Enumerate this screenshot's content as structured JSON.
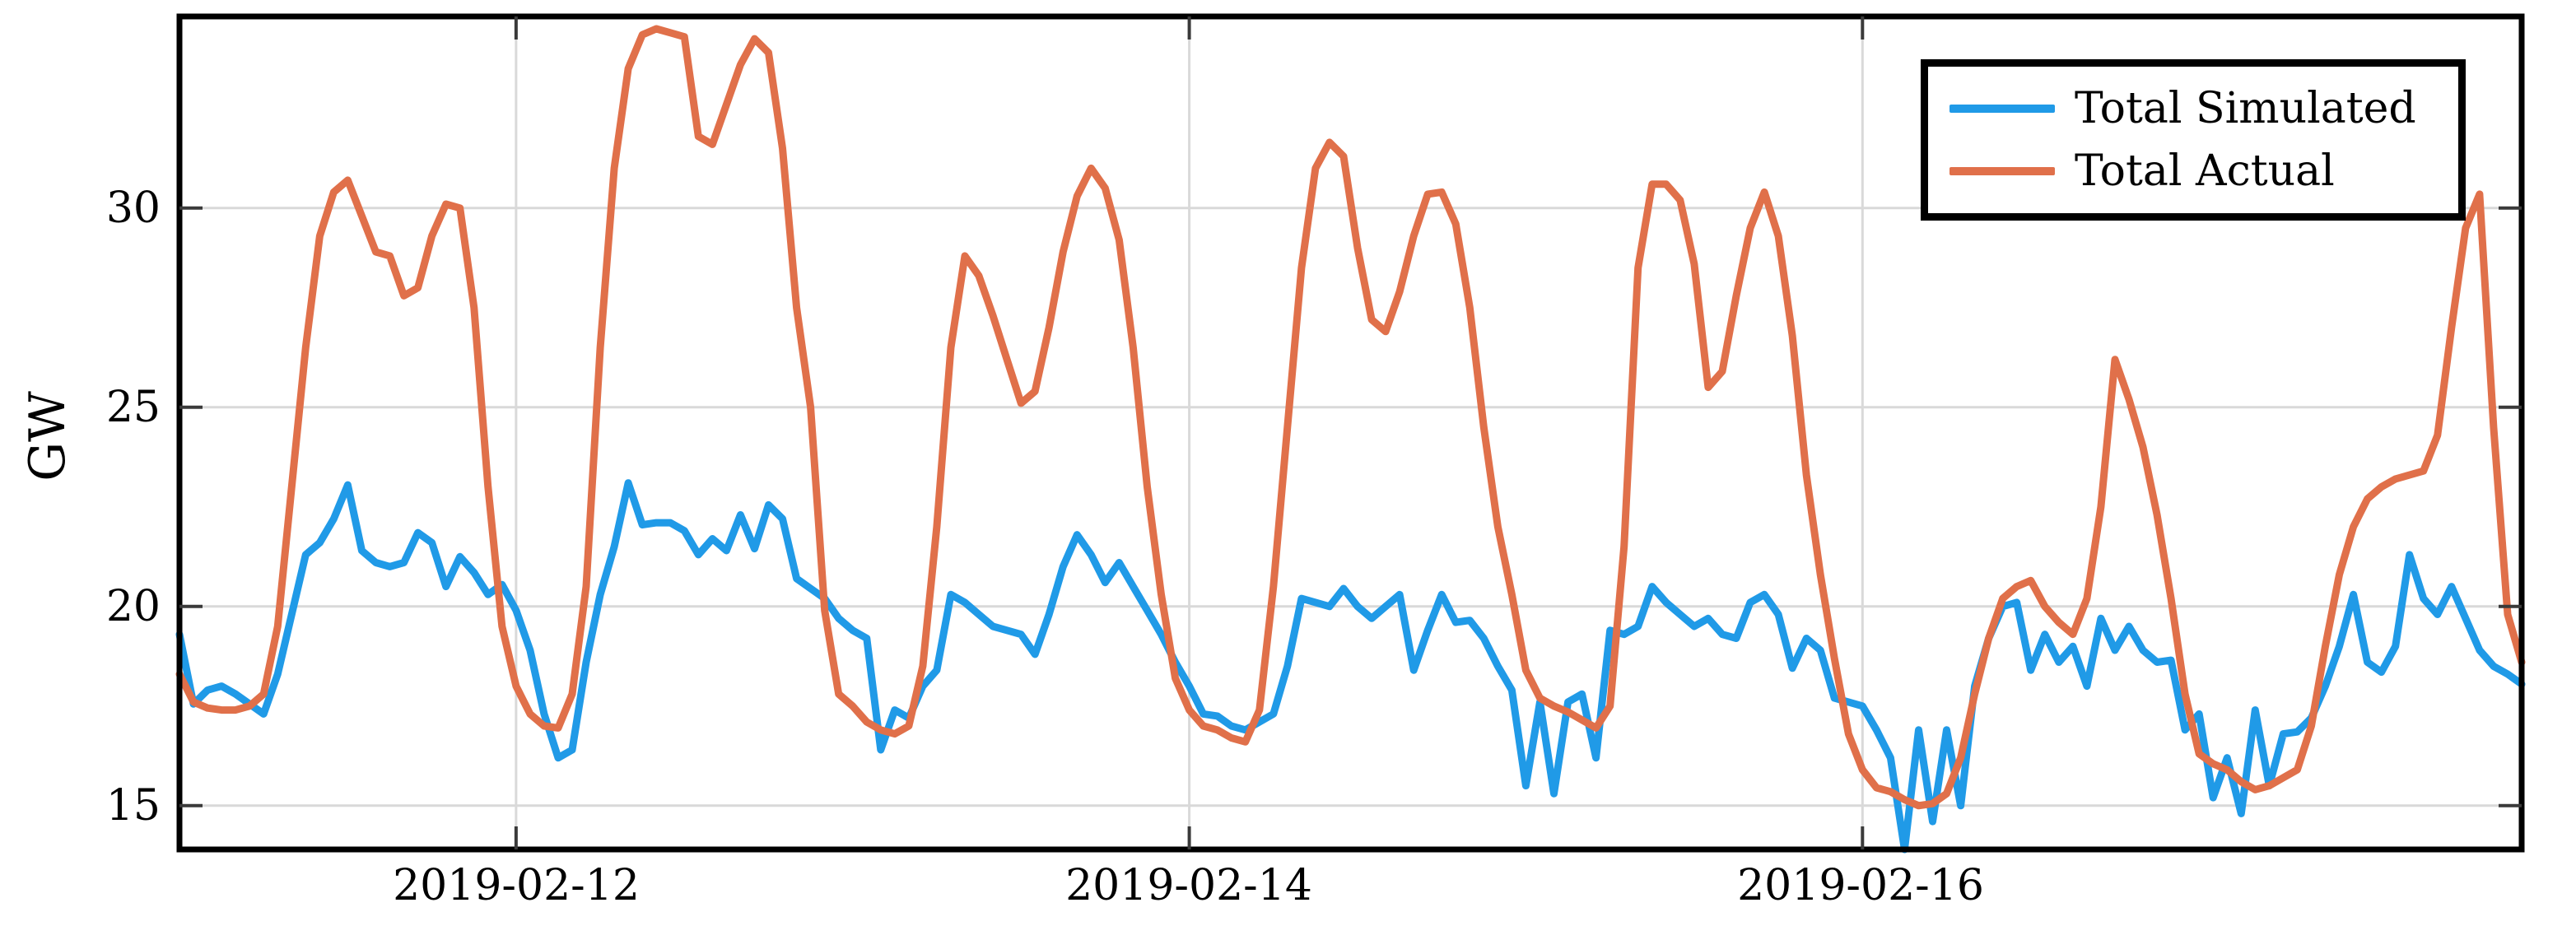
{
  "chart_data": {
    "type": "line",
    "title": "",
    "ylabel": "GW",
    "xlabel": "",
    "grid": true,
    "legend_position": "top-right",
    "ylim": [
      13.9,
      34.81
    ],
    "y_ticks": [
      30,
      25,
      20,
      15
    ],
    "x_start": "2019-02-11 00:00",
    "x_step_hours": 1,
    "x_ticks": [
      {
        "label": "2019-02-12",
        "hour_index": 24
      },
      {
        "label": "2019-02-14",
        "hour_index": 72
      },
      {
        "label": "2019-02-16",
        "hour_index": 120
      }
    ],
    "series": [
      {
        "name": "Total Simulated",
        "color": "#209AE7",
        "values": [
          19.3,
          17.55,
          17.9,
          18.0,
          17.8,
          17.55,
          17.3,
          18.3,
          19.8,
          21.3,
          21.6,
          22.2,
          23.05,
          21.4,
          21.1,
          21.0,
          21.1,
          21.85,
          21.6,
          20.5,
          21.25,
          20.85,
          20.3,
          20.55,
          19.9,
          18.9,
          17.3,
          16.2,
          16.4,
          18.6,
          20.3,
          21.5,
          23.1,
          22.05,
          22.1,
          22.1,
          21.9,
          21.3,
          21.7,
          21.4,
          22.3,
          21.45,
          22.55,
          22.2,
          20.7,
          20.45,
          20.2,
          19.7,
          19.4,
          19.2,
          16.4,
          17.4,
          17.2,
          18.0,
          18.4,
          20.3,
          20.1,
          19.8,
          19.5,
          19.4,
          19.3,
          18.8,
          19.8,
          21.0,
          21.8,
          21.3,
          20.6,
          21.1,
          20.5,
          19.9,
          19.3,
          18.6,
          18.0,
          17.3,
          17.25,
          17.0,
          16.9,
          17.1,
          17.3,
          18.5,
          20.2,
          20.1,
          20.0,
          20.45,
          20.0,
          19.7,
          20.0,
          20.3,
          18.4,
          19.4,
          20.3,
          19.6,
          19.65,
          19.2,
          18.5,
          17.9,
          15.5,
          17.6,
          15.3,
          17.6,
          17.8,
          16.2,
          19.4,
          19.3,
          19.5,
          20.5,
          20.1,
          19.8,
          19.5,
          19.7,
          19.3,
          19.2,
          20.1,
          20.3,
          19.8,
          18.45,
          19.2,
          18.9,
          17.7,
          17.6,
          17.5,
          16.9,
          16.2,
          13.9,
          16.9,
          14.6,
          16.9,
          15.0,
          18.0,
          19.2,
          20.0,
          20.1,
          18.4,
          19.3,
          18.6,
          19.0,
          18.0,
          19.7,
          18.9,
          19.5,
          18.9,
          18.6,
          18.65,
          16.9,
          17.3,
          15.2,
          16.2,
          14.8,
          17.4,
          15.5,
          16.8,
          16.85,
          17.2,
          18.0,
          19.0,
          20.3,
          18.6,
          18.35,
          19.0,
          21.3,
          20.2,
          19.8,
          20.5,
          19.7,
          18.9,
          18.5,
          18.3,
          18.05
        ]
      },
      {
        "name": "Total Actual",
        "color": "#E0704A",
        "values": [
          18.3,
          17.6,
          17.45,
          17.4,
          17.4,
          17.5,
          17.8,
          19.5,
          23.0,
          26.5,
          29.3,
          30.4,
          30.7,
          29.8,
          28.9,
          28.8,
          27.8,
          28.0,
          29.3,
          30.1,
          30.0,
          27.5,
          23.0,
          19.5,
          18.0,
          17.3,
          17.0,
          16.95,
          17.8,
          20.5,
          26.5,
          31.0,
          33.5,
          34.35,
          34.5,
          34.4,
          34.3,
          31.8,
          31.6,
          32.6,
          33.6,
          34.25,
          33.9,
          31.5,
          27.5,
          25.0,
          19.9,
          17.8,
          17.5,
          17.1,
          16.9,
          16.8,
          17.0,
          18.5,
          22.0,
          26.5,
          28.8,
          28.3,
          27.3,
          26.2,
          25.1,
          25.4,
          27.0,
          28.9,
          30.3,
          31.0,
          30.5,
          29.2,
          26.5,
          23.0,
          20.3,
          18.2,
          17.4,
          17.0,
          16.9,
          16.7,
          16.6,
          17.4,
          20.5,
          24.5,
          28.5,
          31.0,
          31.65,
          31.3,
          29.0,
          27.2,
          26.9,
          27.9,
          29.3,
          30.35,
          30.4,
          29.6,
          27.5,
          24.5,
          22.0,
          20.3,
          18.4,
          17.7,
          17.5,
          17.35,
          17.15,
          16.95,
          17.5,
          21.5,
          28.5,
          30.6,
          30.6,
          30.2,
          28.6,
          25.5,
          25.9,
          27.8,
          29.5,
          30.4,
          29.3,
          26.8,
          23.3,
          20.8,
          18.7,
          16.8,
          15.9,
          15.45,
          15.35,
          15.15,
          15.0,
          15.05,
          15.3,
          16.2,
          17.8,
          19.2,
          20.2,
          20.5,
          20.65,
          20.0,
          19.6,
          19.3,
          20.2,
          22.5,
          26.2,
          25.2,
          24.0,
          22.3,
          20.2,
          17.8,
          16.3,
          16.05,
          15.9,
          15.6,
          15.4,
          15.5,
          15.7,
          15.9,
          17.0,
          19.0,
          20.8,
          22.0,
          22.7,
          23.0,
          23.2,
          23.3,
          23.4,
          24.3,
          27.0,
          29.5,
          30.35,
          24.5,
          19.8,
          18.6
        ]
      }
    ]
  },
  "axes": {
    "y_tick_labels": [
      "30",
      "25",
      "20",
      "15"
    ],
    "x_tick_labels": [
      "2019-02-12",
      "2019-02-14",
      "2019-02-16"
    ],
    "y_axis_label": "GW"
  },
  "legend": {
    "items": [
      {
        "label": "Total Simulated"
      },
      {
        "label": "Total Actual"
      }
    ]
  },
  "colors": {
    "simulated": "#209AE7",
    "actual": "#E0704A",
    "grid": "#d9d9d9",
    "frame": "#000000",
    "tick": "#3a3a3a"
  }
}
